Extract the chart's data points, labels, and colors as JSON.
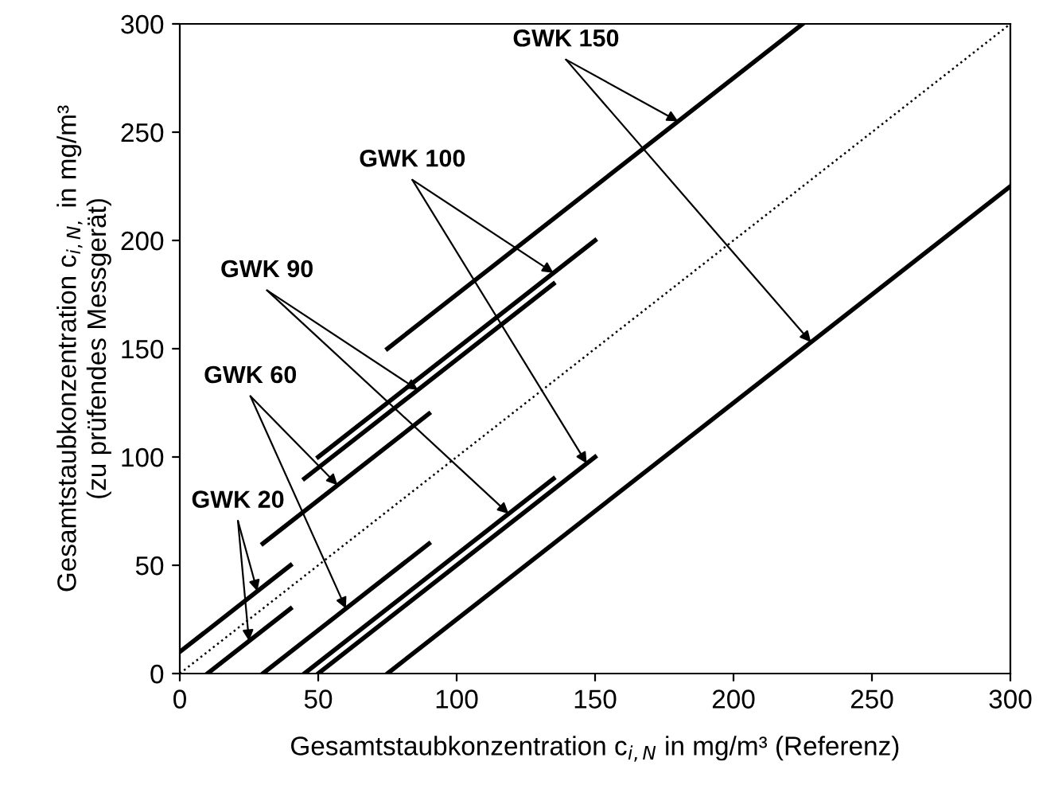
{
  "chart_data": {
    "type": "line",
    "xlabel": "Gesamtstaubkonzentration c$_{i,N}$ in mg/m³ (Referenz)",
    "ylabel": "Gesamtstaubkonzentration c$_{i,N,}$ in mg/m³\n(zu prüfendes Messgerät)",
    "xlim": [
      0,
      300
    ],
    "ylim": [
      0,
      300
    ],
    "xticks": [
      0,
      50,
      100,
      150,
      200,
      250,
      300
    ],
    "yticks": [
      0,
      50,
      100,
      150,
      200,
      250,
      300
    ],
    "grid": false,
    "legend": false,
    "marker": "none",
    "series": [
      {
        "color": "#000000",
        "line_style": "dotted",
        "x": [
          0,
          300
        ],
        "values": [
          0,
          300
        ]
      },
      {
        "color": "#000000",
        "line_style": "solid",
        "x": [
          75,
          225
        ],
        "values": [
          150,
          300
        ]
      },
      {
        "color": "#000000",
        "line_style": "solid",
        "x": [
          75,
          300
        ],
        "values": [
          0,
          225
        ]
      },
      {
        "color": "#000000",
        "line_style": "solid",
        "x": [
          50,
          150
        ],
        "values": [
          100,
          200
        ]
      },
      {
        "color": "#000000",
        "line_style": "solid",
        "x": [
          50,
          150
        ],
        "values": [
          0,
          100
        ]
      },
      {
        "color": "#000000",
        "line_style": "solid",
        "x": [
          45,
          135
        ],
        "values": [
          90,
          180
        ]
      },
      {
        "color": "#000000",
        "line_style": "solid",
        "x": [
          45,
          135
        ],
        "values": [
          0,
          90
        ]
      },
      {
        "color": "#000000",
        "line_style": "solid",
        "x": [
          30,
          90
        ],
        "values": [
          60,
          120
        ]
      },
      {
        "color": "#000000",
        "line_style": "solid",
        "x": [
          30,
          90
        ],
        "values": [
          0,
          60
        ]
      },
      {
        "color": "#000000",
        "line_style": "solid",
        "x": [
          0,
          40
        ],
        "values": [
          10,
          50
        ]
      },
      {
        "color": "#000000",
        "line_style": "solid",
        "x": [
          10,
          40
        ],
        "values": [
          0,
          30
        ]
      }
    ],
    "annotations": [
      {
        "text": "GWK 150",
        "x": 180,
        "y": 255
      },
      {
        "text": "GWK 100",
        "x": 135,
        "y": 185
      },
      {
        "text": "GWK 90",
        "x": 86,
        "y": 131
      },
      {
        "text": "GWK 60",
        "x": 57,
        "y": 87
      },
      {
        "text": "GWK 20",
        "x": 28,
        "y": 38
      }
    ]
  }
}
